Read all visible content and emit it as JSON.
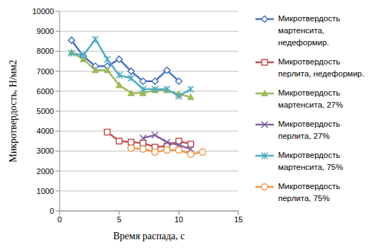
{
  "chart_data": {
    "type": "line",
    "x_label": "Время распада, с",
    "y_label": "Микротвердость, Н/мм2",
    "xlim": [
      0,
      15
    ],
    "xticks": [
      0,
      5,
      10,
      15
    ],
    "ylim": [
      0,
      10000
    ],
    "yticks": [
      0,
      1000,
      2000,
      3000,
      4000,
      5000,
      6000,
      7000,
      8000,
      9000,
      10000
    ],
    "grid": true,
    "legend": "right",
    "series": [
      {
        "name": "Микротвердость мартенсита, недеформир.",
        "color": "#4472c4",
        "marker": "diamond",
        "x": [
          1,
          2,
          3,
          4,
          5,
          6,
          7,
          8,
          9,
          10
        ],
        "values": [
          8550,
          7750,
          7250,
          7250,
          7600,
          7000,
          6500,
          6500,
          7050,
          6500
        ]
      },
      {
        "name": "Микротвердость перлита, недеформир.",
        "color": "#c0504d",
        "marker": "square",
        "x": [
          4,
          5,
          6,
          7,
          8,
          9,
          10,
          11
        ],
        "values": [
          3950,
          3500,
          3450,
          3400,
          3200,
          3250,
          3500,
          3350
        ]
      },
      {
        "name": "Микротвердость мартенсита, 27%",
        "color": "#9bbb59",
        "marker": "triangle",
        "x": [
          1,
          2,
          3,
          4,
          5,
          6,
          7,
          8,
          9,
          10,
          11
        ],
        "values": [
          7950,
          7600,
          7050,
          7050,
          6300,
          5900,
          5900,
          6050,
          6050,
          5850,
          5700
        ]
      },
      {
        "name": "Микротвердость перлита, 27%",
        "color": "#8064a2",
        "marker": "cross",
        "x": [
          7,
          8,
          9,
          10,
          11
        ],
        "values": [
          3650,
          3800,
          3450,
          3300,
          3100
        ]
      },
      {
        "name": "Микротвердость мартенсита, 75%",
        "color": "#4bacc6",
        "marker": "star",
        "x": [
          1,
          2,
          3,
          4,
          5,
          6,
          7,
          8,
          9,
          10,
          11
        ],
        "values": [
          7900,
          7800,
          8600,
          7600,
          6800,
          6650,
          6100,
          6100,
          6100,
          5750,
          6100
        ]
      },
      {
        "name": "Микротвердость перлита, 75%",
        "color": "#f79646",
        "marker": "circle",
        "x": [
          6,
          7,
          8,
          9,
          10,
          11,
          12
        ],
        "values": [
          3150,
          3100,
          2950,
          3050,
          3050,
          2850,
          2950
        ]
      }
    ]
  }
}
